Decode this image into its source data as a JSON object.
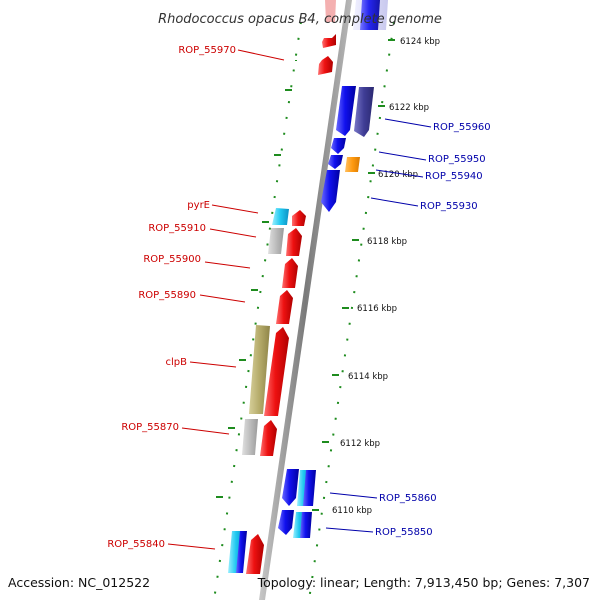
{
  "title": "Rhodococcus opacus B4, complete genome",
  "accession": "Accession: NC_012522",
  "topology": "Topology: linear; Length: 7,913,450 bp; Genes: 7,307",
  "ticks": [
    "6124 kbp",
    "6122 kbp",
    "6120 kbp",
    "6118 kbp",
    "6116 kbp",
    "6114 kbp",
    "6112 kbp",
    "6110 kbp"
  ],
  "labels_left": [
    "ROP_55970",
    "pyrE",
    "ROP_55910",
    "ROP_55900",
    "ROP_55890",
    "clpB",
    "ROP_55870",
    "ROP_55840"
  ],
  "labels_right": [
    "ROP_55960",
    "ROP_55950",
    "ROP_55940",
    "ROP_55930",
    "ROP_55860",
    "ROP_55850"
  ],
  "colors": {
    "forward_strand": "#ee1111",
    "reverse_strand": "#1111ee",
    "left_label": "#cc0000",
    "right_label": "#0000aa",
    "tick_marks": "#228b22",
    "backbone": "#888888"
  }
}
